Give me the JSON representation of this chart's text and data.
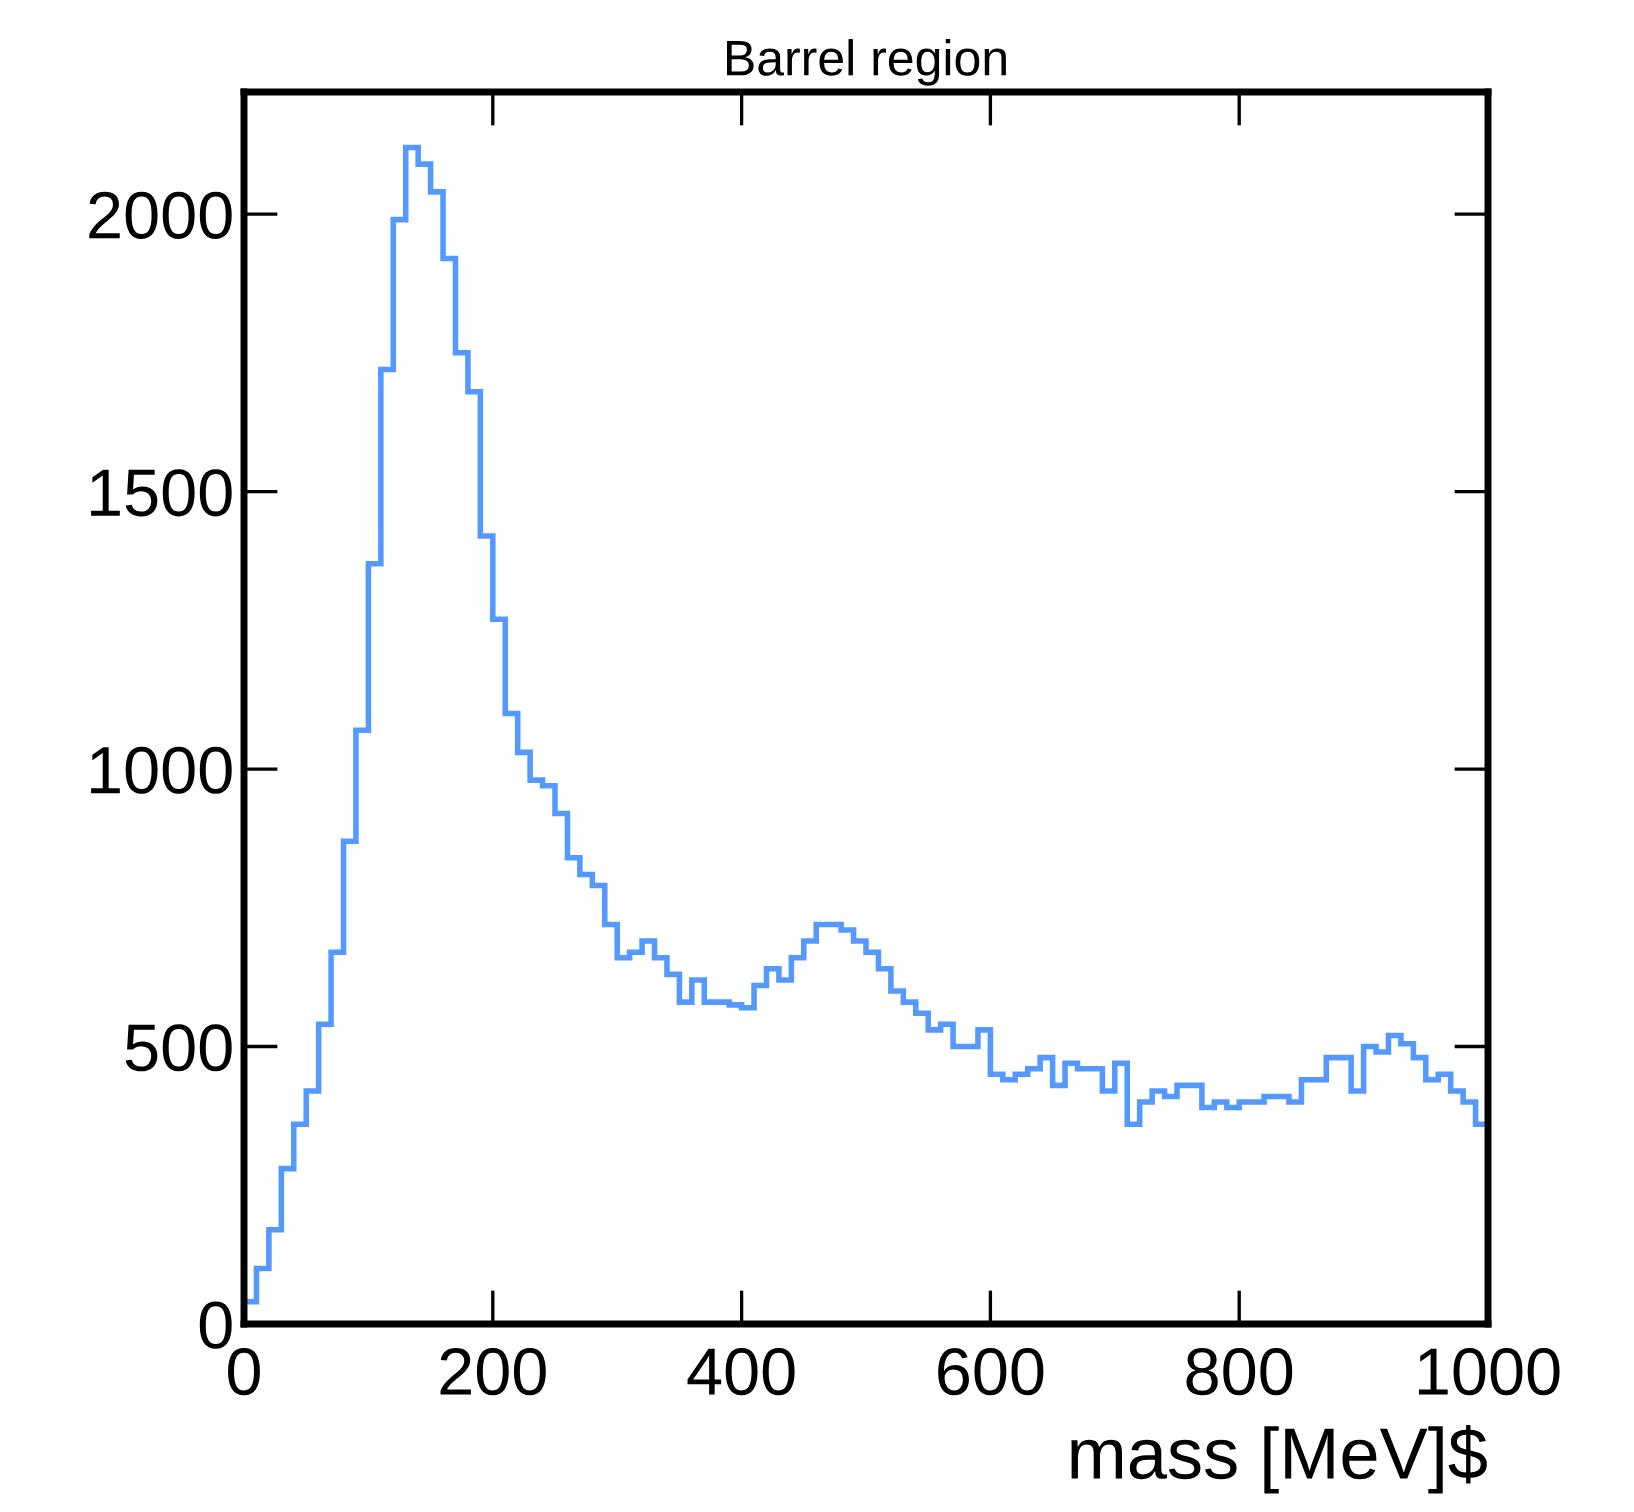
{
  "chart_data": {
    "type": "histogram",
    "title": "Barrel region",
    "xlabel": "mass [MeV]$",
    "bins": [
      0,
      10,
      20,
      30,
      40,
      50,
      60,
      70,
      80,
      90,
      100,
      110,
      120,
      130,
      140,
      150,
      160,
      170,
      180,
      190,
      200,
      210,
      220,
      230,
      240,
      250,
      260,
      270,
      280,
      290,
      300,
      310,
      320,
      330,
      340,
      350,
      360,
      370,
      380,
      390,
      400,
      410,
      420,
      430,
      440,
      450,
      460,
      470,
      480,
      490,
      500,
      510,
      520,
      530,
      540,
      550,
      560,
      570,
      580,
      590,
      600,
      610,
      620,
      630,
      640,
      650,
      660,
      670,
      680,
      690,
      700,
      710,
      720,
      730,
      740,
      750,
      760,
      770,
      780,
      790,
      800,
      810,
      820,
      830,
      840,
      850,
      860,
      870,
      880,
      890,
      900,
      910,
      920,
      930,
      940,
      950,
      960,
      970,
      980,
      990,
      1000
    ],
    "values": [
      40,
      100,
      170,
      280,
      360,
      420,
      540,
      670,
      870,
      1070,
      1370,
      1720,
      1990,
      2120,
      2090,
      2040,
      1920,
      1750,
      1680,
      1420,
      1270,
      1100,
      1030,
      980,
      970,
      920,
      840,
      810,
      790,
      720,
      660,
      670,
      690,
      660,
      630,
      580,
      620,
      580,
      580,
      575,
      570,
      610,
      640,
      620,
      660,
      690,
      720,
      720,
      710,
      690,
      670,
      640,
      600,
      580,
      560,
      530,
      540,
      500,
      500,
      530,
      450,
      440,
      450,
      460,
      480,
      430,
      470,
      460,
      460,
      420,
      470,
      360,
      400,
      420,
      410,
      430,
      430,
      390,
      400,
      390,
      400,
      400,
      410,
      410,
      400,
      440,
      440,
      480,
      480,
      420,
      500,
      490,
      520,
      505,
      480,
      440,
      450,
      420,
      400,
      360
    ],
    "color": "#5599ff",
    "xlim": [
      0,
      1000
    ],
    "ylim": [
      0,
      2220
    ],
    "xticks": [
      0,
      200,
      400,
      600,
      800,
      1000
    ],
    "yticks": [
      0,
      500,
      1000,
      1500,
      2000
    ],
    "grid": false,
    "legend": false
  }
}
